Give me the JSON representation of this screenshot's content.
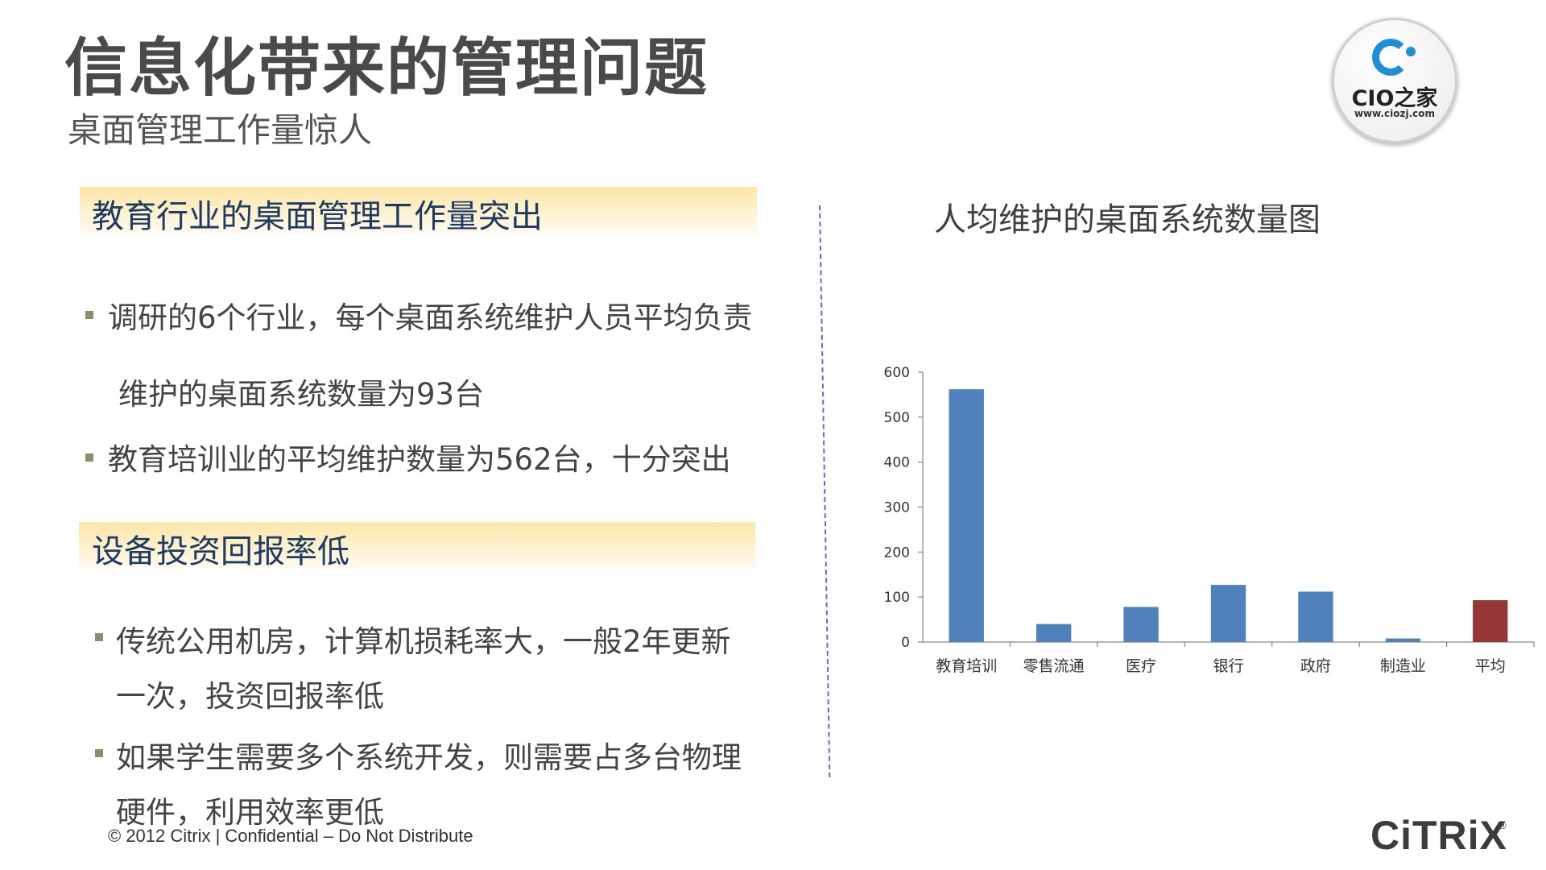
{
  "header": {
    "title": "信息化带来的管理问题",
    "subtitle": "桌面管理工作量惊人"
  },
  "logo": {
    "text": "CIO之家",
    "url": "www.ciozj.com",
    "accent_color": "#1f8ed6"
  },
  "section1": {
    "heading": "教育行业的桌面管理工作量突出",
    "bullets": [
      "调研的6个行业，每个桌面系统维护人员平均负责",
      "维护的桌面系统数量为93台",
      "教育培训业的平均维护数量为562台，十分突出"
    ]
  },
  "section2": {
    "heading": "设备投资回报率低",
    "bullets": [
      "传统公用机房，计算机损耗率大，一般2年更新",
      "一次，投资回报率低",
      "如果学生需要多个系统开发，则需要占多台物理",
      "硬件，利用效率更低"
    ]
  },
  "chart_data": {
    "type": "bar",
    "title": "人均维护的桌面系统数量图",
    "categories": [
      "教育培训",
      "零售流通",
      "医疗",
      "银行",
      "政府",
      "制造业",
      "平均"
    ],
    "values": [
      562,
      40,
      78,
      127,
      112,
      8,
      93
    ],
    "colors": [
      "#4f81bd",
      "#4f81bd",
      "#4f81bd",
      "#4f81bd",
      "#4f81bd",
      "#4f81bd",
      "#953735"
    ],
    "ylim": [
      0,
      600
    ],
    "yticks": [
      0,
      100,
      200,
      300,
      400,
      500,
      600
    ],
    "xlabel": "",
    "ylabel": "",
    "grid": false,
    "legend": "none"
  },
  "footer": {
    "copyright": "© 2012 Citrix | Confidential – Do Not Distribute",
    "brand": "CiTRiX",
    "brand_mark": "®"
  }
}
